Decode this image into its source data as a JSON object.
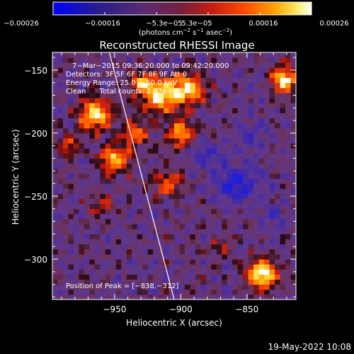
{
  "chart_data": {
    "type": "heatmap",
    "title": "Reconstructed RHESSI Image",
    "xlabel": "Heliocentric X (arcsec)",
    "ylabel": "Heliocentric Y (arcsec)",
    "xlim": [
      -997,
      -813
    ],
    "ylim": [
      -332,
      -136
    ],
    "x_ticks": [
      {
        "value": -950,
        "label": "−950"
      },
      {
        "value": -900,
        "label": "−900"
      },
      {
        "value": -850,
        "label": "−850"
      }
    ],
    "y_ticks": [
      {
        "value": -150,
        "label": "−150"
      },
      {
        "value": -200,
        "label": "−200"
      },
      {
        "value": -250,
        "label": "−250"
      },
      {
        "value": -300,
        "label": "−300"
      }
    ],
    "colorbar": {
      "range": [
        -0.00026,
        0.00026
      ],
      "tick_labels": [
        "−0.00026",
        "−0.00016",
        "−5.3e−05",
        "5.3e−05",
        "0.00016",
        "0.00026"
      ],
      "units_prefix": "(photons cm",
      "units_exp1": "−2",
      "units_mid": " s",
      "units_exp2": "−1",
      "units_mid2": " asec",
      "units_exp3": "−2",
      "units_suffix": ")"
    },
    "info_lines": [
      "7−Mar−2015 09:36:20.000 to 09:42:20.000",
      "Detectors: 3F 5F 6F 7F 8F 9F Att 0",
      "Energy Range: 25.0 − 50.0 keV",
      "Clean      Total counts: 2.07e+03"
    ],
    "peak_label": "Position of Peak = [−838,−312]",
    "limb_line": [
      [
        -954,
        -136
      ],
      [
        -905,
        -332
      ]
    ],
    "sources": [
      {
        "x": -965,
        "y": -185,
        "amp": 0.9,
        "r": 12
      },
      {
        "x": -950,
        "y": -220,
        "amp": 0.75,
        "r": 11
      },
      {
        "x": -935,
        "y": -200,
        "amp": 0.55,
        "r": 10
      },
      {
        "x": -915,
        "y": -170,
        "amp": 0.85,
        "r": 13
      },
      {
        "x": -895,
        "y": -165,
        "amp": 0.8,
        "r": 12
      },
      {
        "x": -900,
        "y": -200,
        "amp": 0.7,
        "r": 10
      },
      {
        "x": -910,
        "y": -240,
        "amp": 0.5,
        "r": 10
      },
      {
        "x": -930,
        "y": -160,
        "amp": 0.6,
        "r": 9
      },
      {
        "x": -822,
        "y": -158,
        "amp": 0.85,
        "r": 10
      },
      {
        "x": -838,
        "y": -312,
        "amp": 1.0,
        "r": 11
      },
      {
        "x": -985,
        "y": -210,
        "amp": 0.45,
        "r": 8
      },
      {
        "x": -960,
        "y": -255,
        "amp": 0.35,
        "r": 9
      },
      {
        "x": -870,
        "y": -290,
        "amp": 0.3,
        "r": 8
      }
    ],
    "troughs": [
      {
        "x": -858,
        "y": -240,
        "amp": 0.8,
        "r": 16
      },
      {
        "x": -880,
        "y": -215,
        "amp": 0.5,
        "r": 11
      },
      {
        "x": -845,
        "y": -200,
        "amp": 0.45,
        "r": 12
      },
      {
        "x": -830,
        "y": -265,
        "amp": 0.4,
        "r": 10
      }
    ]
  },
  "footer": {
    "date": "19-May-2022 10:08"
  }
}
